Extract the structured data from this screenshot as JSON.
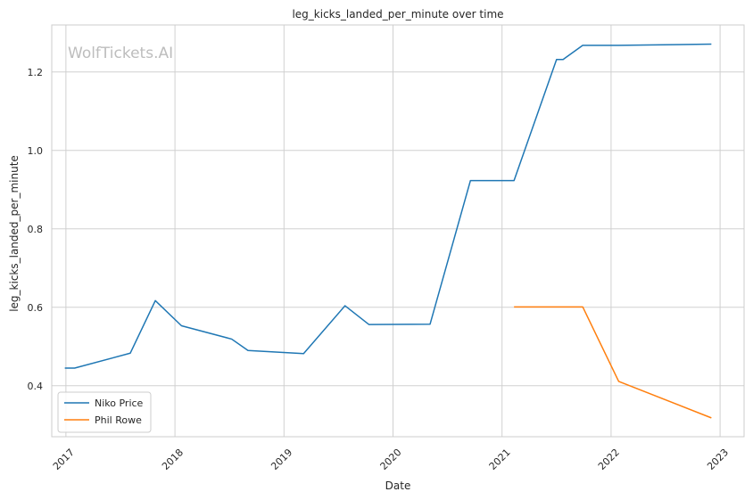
{
  "chart_data": {
    "type": "line",
    "title": "leg_kicks_landed_per_minute over time",
    "xlabel": "Date",
    "ylabel": "leg_kicks_landed_per_minute",
    "watermark": "WolfTickets.AI",
    "xlim": [
      2016.87,
      2023.22
    ],
    "ylim": [
      0.27,
      1.32
    ],
    "x_ticks": [
      2017,
      2018,
      2019,
      2020,
      2021,
      2022,
      2023
    ],
    "x_tick_labels": [
      "2017",
      "2018",
      "2019",
      "2020",
      "2021",
      "2022",
      "2023"
    ],
    "y_ticks": [
      0.4,
      0.6,
      0.8,
      1.0,
      1.2
    ],
    "y_tick_labels": [
      "0.4",
      "0.6",
      "0.8",
      "1.0",
      "1.2"
    ],
    "grid": true,
    "legend_position": "lower-left",
    "series": [
      {
        "name": "Niko Price",
        "color": "#1f77b4",
        "x": [
          2016.99,
          2017.08,
          2017.59,
          2017.82,
          2018.06,
          2018.52,
          2018.67,
          2019.18,
          2019.56,
          2019.78,
          2020.34,
          2020.71,
          2021.11,
          2021.5,
          2021.56,
          2021.74,
          2022.07,
          2022.92
        ],
        "y": [
          0.445,
          0.445,
          0.483,
          0.617,
          0.553,
          0.519,
          0.49,
          0.482,
          0.604,
          0.556,
          0.557,
          0.923,
          0.923,
          1.232,
          1.232,
          1.268,
          1.268,
          1.271
        ]
      },
      {
        "name": "Phil Rowe",
        "color": "#ff7f0e",
        "x": [
          2021.11,
          2021.74,
          2022.07,
          2022.92
        ],
        "y": [
          0.601,
          0.601,
          0.411,
          0.318
        ]
      }
    ]
  }
}
